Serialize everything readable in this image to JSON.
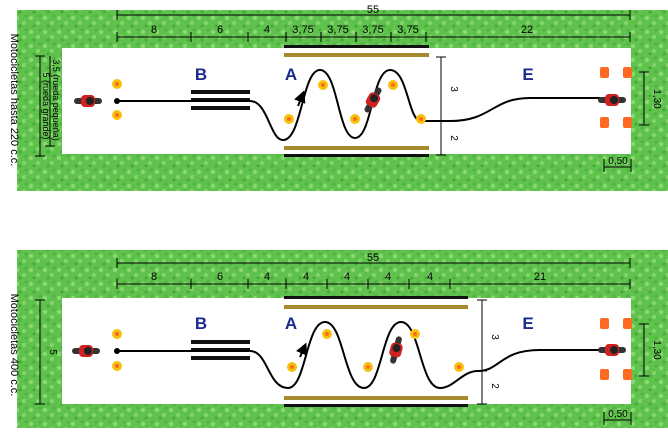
{
  "colors": {
    "grass": "#5fc24c",
    "grass_light": "#8ad873",
    "track": "#ffffff",
    "bar_gold": "#a6882f",
    "bar_black": "#111111",
    "letters": "#1c2a8c",
    "cone": "#ff6a22",
    "cone_yellow": "#f4c20a",
    "bike_red": "#d02020"
  },
  "top": {
    "side_label": "Motocicletas hasta 220 c.c.",
    "total": "55",
    "segments": [
      "8",
      "6",
      "4",
      "3,75",
      "3,75",
      "3,75",
      "3,75",
      "22"
    ],
    "letters": {
      "B": "B",
      "A": "A",
      "E": "E"
    },
    "left_dims": [
      "3,5 (rueda pequeña)",
      "5 (rueda grande)"
    ],
    "dim_3": "3",
    "dim_2": "2",
    "dim_right": "1,30",
    "dim_bottom": "0,50"
  },
  "bottom": {
    "side_label": "Motocicletas 400 c.c.",
    "total": "55",
    "segments": [
      "8",
      "6",
      "4",
      "4",
      "4",
      "4",
      "4",
      "21"
    ],
    "letters": {
      "B": "B",
      "A": "A",
      "E": "E"
    },
    "left_dim": "5",
    "dim_3": "3",
    "dim_2": "2",
    "dim_right": "1,30",
    "dim_bottom": "0,50"
  }
}
